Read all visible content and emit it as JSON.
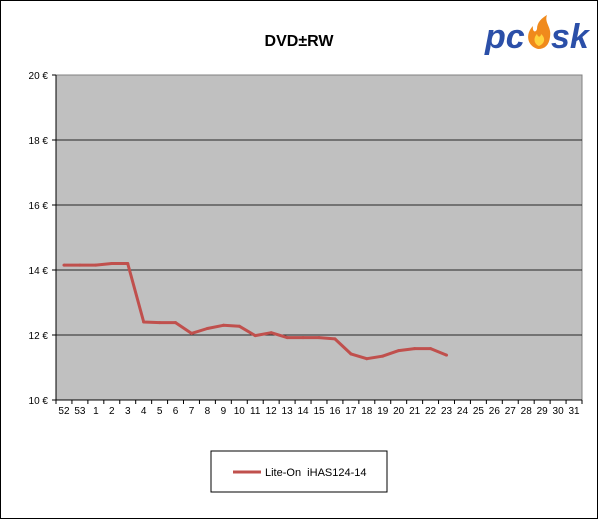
{
  "logo": {
    "text": "pcsk",
    "colors": {
      "blue": "#2b4fa8",
      "flame": "#f08a1c",
      "flame_inner": "#ffd23c"
    }
  },
  "chart_data": {
    "type": "line",
    "title": "DVD±RW",
    "xlabel": "",
    "ylabel": "",
    "categories": [
      "52",
      "53",
      "1",
      "2",
      "3",
      "4",
      "5",
      "6",
      "7",
      "8",
      "9",
      "10",
      "11",
      "12",
      "13",
      "14",
      "15",
      "16",
      "17",
      "18",
      "19",
      "20",
      "21",
      "22",
      "23",
      "24",
      "25",
      "26",
      "27",
      "28",
      "29",
      "30",
      "31"
    ],
    "series": [
      {
        "name": "Lite-On  iHAS124-14",
        "color": "#c0504d",
        "values": [
          14.15,
          14.15,
          14.15,
          14.2,
          14.2,
          12.4,
          12.38,
          12.38,
          12.05,
          12.2,
          12.3,
          12.27,
          11.98,
          12.07,
          11.92,
          11.92,
          11.92,
          11.88,
          11.42,
          11.27,
          11.35,
          11.52,
          11.58,
          11.58,
          11.38,
          null,
          null,
          null,
          null,
          null,
          null,
          null,
          null
        ]
      }
    ],
    "ylim": [
      10,
      20
    ],
    "yticks": [
      10,
      12,
      14,
      16,
      18,
      20
    ],
    "ytick_suffix": " €",
    "grid": true,
    "plot_background": "#c0c0c0",
    "legend_position": "bottom-center"
  }
}
